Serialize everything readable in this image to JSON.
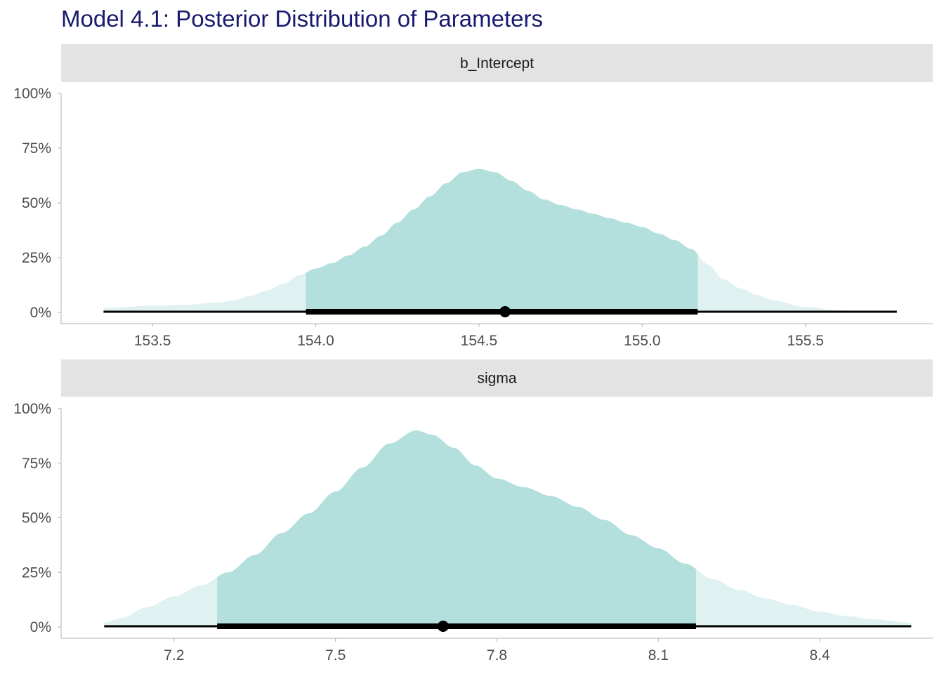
{
  "title": "Model 4.1: Posterior Distribution of Parameters",
  "colors": {
    "title": "#191970",
    "strip_background": "#e3e3e3",
    "density_inner": "#b3dfdd",
    "density_outer": "#dff1f0",
    "interval_line": "#000000",
    "axis_line": "#b3b3b3"
  },
  "chart_data": [
    {
      "type": "area",
      "panel": "b_Intercept",
      "ylim": [
        0,
        1
      ],
      "yticks": [
        0,
        0.25,
        0.5,
        0.75,
        1
      ],
      "ytick_labels": [
        "0%",
        "25%",
        "50%",
        "75%",
        "100%"
      ],
      "xlim": [
        153.22,
        155.89
      ],
      "xticks": [
        153.5,
        154.0,
        154.5,
        155.0,
        155.5
      ],
      "xtick_labels": [
        "153.5",
        "154.0",
        "154.5",
        "155.0",
        "155.5"
      ],
      "density": {
        "x": [
          153.35,
          153.5,
          153.6,
          153.7,
          153.75,
          153.8,
          153.85,
          153.9,
          153.95,
          154.0,
          154.05,
          154.1,
          154.15,
          154.2,
          154.25,
          154.3,
          154.35,
          154.4,
          154.45,
          154.5,
          154.55,
          154.6,
          154.65,
          154.7,
          154.75,
          154.8,
          154.85,
          154.9,
          154.95,
          155.0,
          155.05,
          155.1,
          155.15,
          155.2,
          155.25,
          155.3,
          155.35,
          155.4,
          155.5,
          155.6,
          155.7,
          155.78
        ],
        "y": [
          0.02,
          0.03,
          0.035,
          0.045,
          0.055,
          0.075,
          0.1,
          0.13,
          0.17,
          0.2,
          0.225,
          0.26,
          0.3,
          0.35,
          0.41,
          0.47,
          0.53,
          0.59,
          0.64,
          0.655,
          0.64,
          0.6,
          0.555,
          0.515,
          0.49,
          0.47,
          0.45,
          0.43,
          0.41,
          0.39,
          0.36,
          0.33,
          0.29,
          0.22,
          0.15,
          0.11,
          0.08,
          0.055,
          0.025,
          0.01,
          0.004,
          0.001
        ]
      },
      "interval_inner": [
        153.97,
        155.17
      ],
      "interval_outer": [
        153.35,
        155.78
      ],
      "point_estimate": 154.58
    },
    {
      "type": "area",
      "panel": "sigma",
      "ylim": [
        0,
        1
      ],
      "yticks": [
        0,
        0.25,
        0.5,
        0.75,
        1
      ],
      "ytick_labels": [
        "0%",
        "25%",
        "50%",
        "75%",
        "100%"
      ],
      "xlim": [
        6.99,
        8.61
      ],
      "xticks": [
        7.2,
        7.5,
        7.8,
        8.1,
        8.4
      ],
      "xtick_labels": [
        "7.2",
        "7.5",
        "7.8",
        "8.1",
        "8.4"
      ],
      "density": {
        "x": [
          7.07,
          7.1,
          7.15,
          7.2,
          7.25,
          7.3,
          7.35,
          7.4,
          7.45,
          7.5,
          7.55,
          7.6,
          7.65,
          7.68,
          7.72,
          7.76,
          7.8,
          7.85,
          7.9,
          7.95,
          8.0,
          8.05,
          8.1,
          8.15,
          8.2,
          8.25,
          8.3,
          8.35,
          8.4,
          8.45,
          8.5,
          8.57
        ],
        "y": [
          0.02,
          0.04,
          0.09,
          0.14,
          0.19,
          0.25,
          0.33,
          0.43,
          0.52,
          0.62,
          0.73,
          0.84,
          0.9,
          0.88,
          0.82,
          0.74,
          0.68,
          0.64,
          0.6,
          0.55,
          0.49,
          0.42,
          0.36,
          0.29,
          0.22,
          0.17,
          0.13,
          0.1,
          0.07,
          0.05,
          0.035,
          0.02
        ]
      },
      "interval_inner": [
        7.28,
        8.17
      ],
      "interval_outer": [
        7.07,
        8.57
      ],
      "point_estimate": 7.7
    }
  ]
}
